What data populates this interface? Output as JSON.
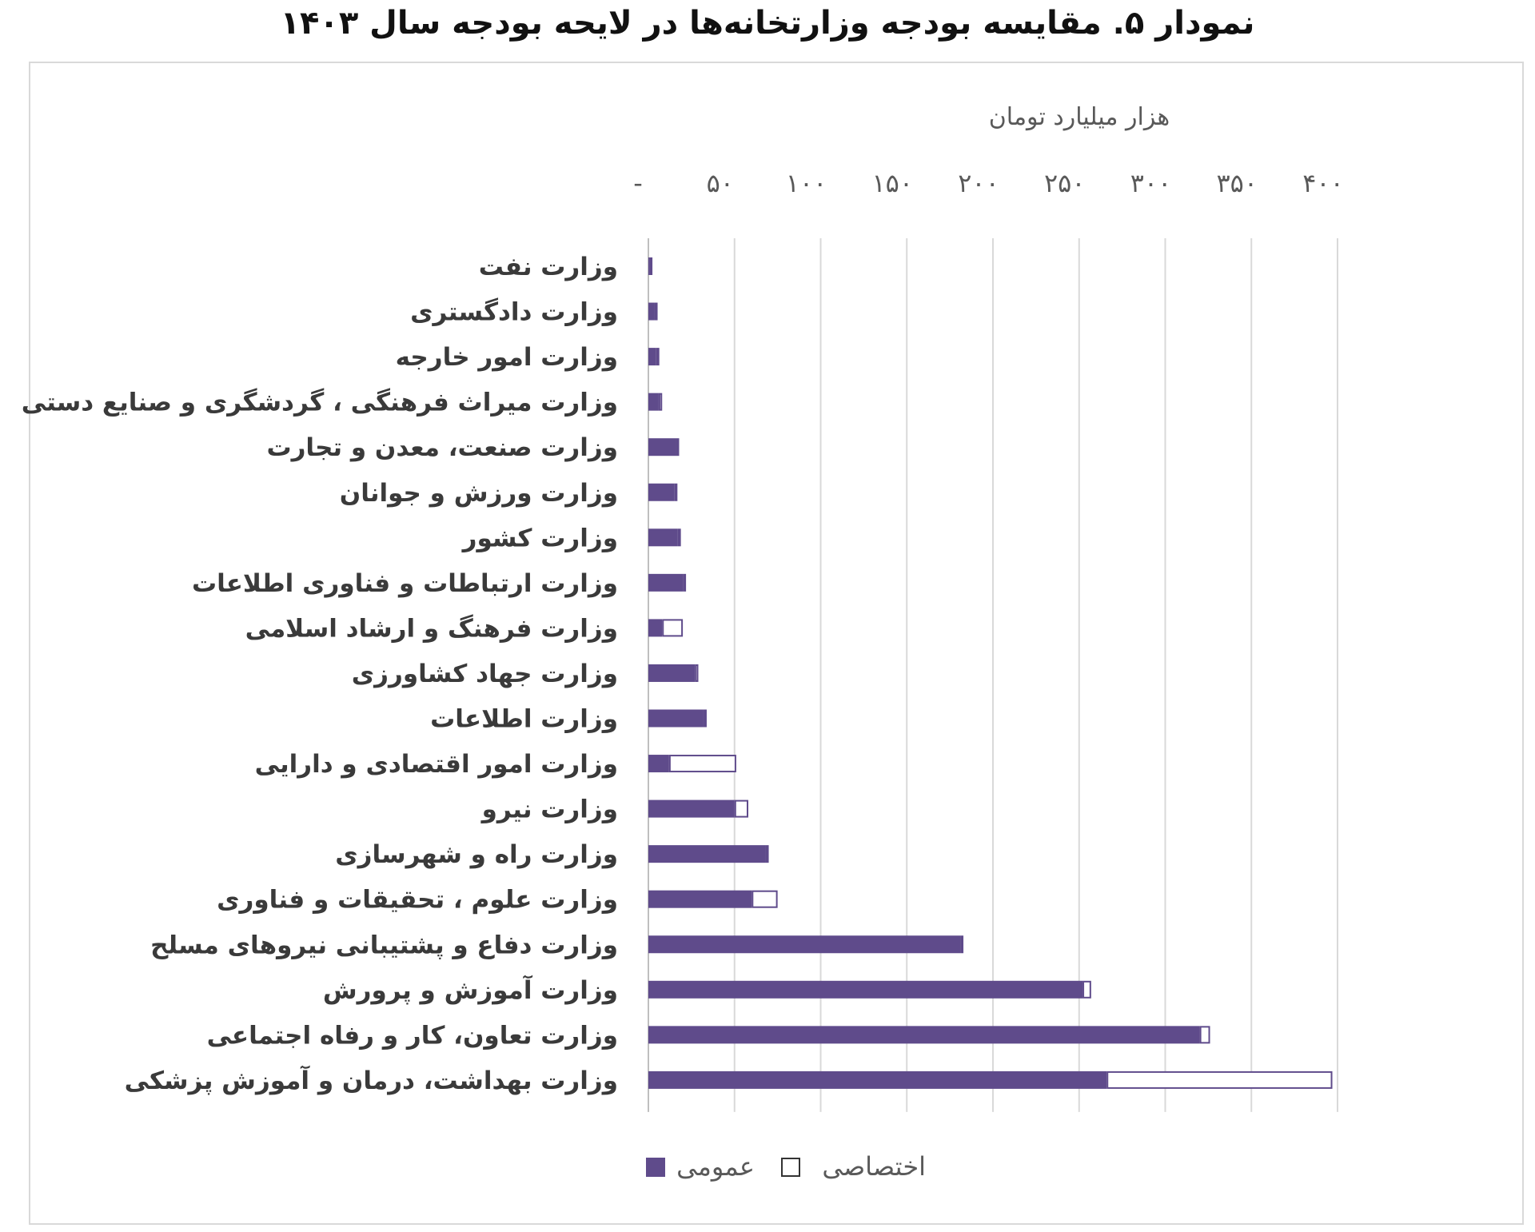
{
  "title": "نمودار ۵. مقایسه بودجه وزارتخانه‌ها در لایحه بودجه سال ۱۴۰۳",
  "chart_data": {
    "type": "bar",
    "orientation": "horizontal",
    "stacked": true,
    "axis_title": "هزار میلیارد تومان",
    "axis_position": "top",
    "xlim": [
      0,
      400
    ],
    "ticks": [
      0,
      50,
      100,
      150,
      200,
      250,
      300,
      350,
      400
    ],
    "tick_labels": [
      "-",
      "۵۰",
      "۱۰۰",
      "۱۵۰",
      "۲۰۰",
      "۲۵۰",
      "۳۰۰",
      "۳۵۰",
      "۴۰۰"
    ],
    "grid": true,
    "legend_position": "bottom",
    "categories": [
      "وزارت نفت",
      "وزارت دادگستری",
      "وزارت امور خارجه",
      "وزارت میراث فرهنگی ، گردشگری و صنایع دستی",
      "وزارت صنعت، معدن و تجارت",
      "وزارت ورزش و جوانان",
      "وزارت کشور",
      "وزارت ارتباطات و فناوری اطلاعات",
      "وزارت فرهنگ و ارشاد اسلامی",
      "وزارت جهاد کشاورزی",
      "وزارت اطلاعات",
      "وزارت امور اقتصادی و دارایی",
      "وزارت نیرو",
      "وزارت راه و شهرسازی",
      "وزارت علوم ، تحقیقات و فناوری",
      "وزارت دفاع و پشتیبانی نیروهای مسلح",
      "وزارت آموزش و پرورش",
      "وزارت تعاون، کار و رفاه اجتماعی",
      "وزارت بهداشت، درمان و آموزش پزشکی"
    ],
    "series": [
      {
        "name": "عمومی",
        "color": "#5f4b8b",
        "values": [
          0.5,
          3.5,
          4.5,
          6,
          16,
          15,
          17,
          20,
          8,
          27,
          32,
          12,
          50,
          68,
          60,
          181,
          252,
          320,
          266
        ]
      },
      {
        "name": "اختصاصی",
        "color": "#ffffff",
        "values": [
          0.3,
          0.3,
          1.5,
          2,
          0.5,
          1,
          0.5,
          0.5,
          12,
          2,
          0.5,
          39,
          8,
          0.5,
          15,
          0.5,
          5,
          6,
          131
        ]
      }
    ]
  }
}
